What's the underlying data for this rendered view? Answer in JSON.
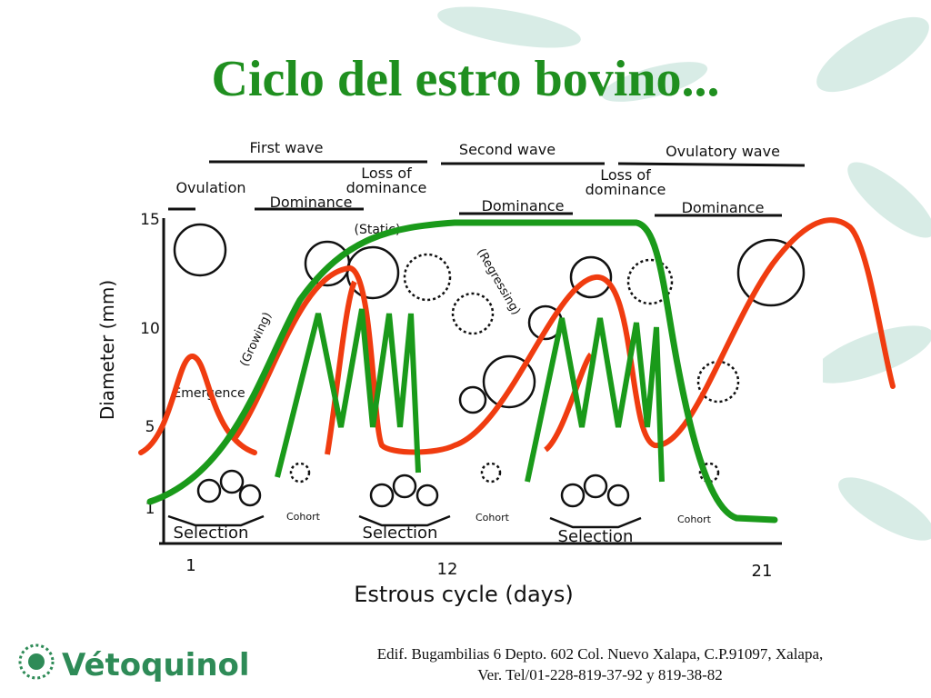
{
  "title": "Ciclo del estro bovino...",
  "diagram": {
    "waves": [
      "First wave",
      "Second wave",
      "Ovulatory wave"
    ],
    "ovulation": "Ovulation",
    "loss_of_dominance": [
      [
        "Loss of",
        "dominance"
      ],
      [
        "Loss of",
        "dominance"
      ]
    ],
    "dominance": [
      "Dominance",
      "Dominance",
      "Dominance"
    ],
    "static": "(Static)",
    "regressing": "(Regressing)",
    "growing": "(Growing)",
    "emergence": "Emergence",
    "selection": [
      "Selection",
      "Selection",
      "Selection"
    ],
    "cohort": [
      "Cohort",
      "Cohort",
      "Cohort"
    ],
    "y_label": "Diameter  (mm)",
    "y_ticks": [
      "15",
      "10",
      "5",
      "1"
    ],
    "x_ticks": [
      "1",
      "12",
      "21"
    ],
    "x_label": "Estrous cycle (days)"
  },
  "footer": {
    "lines": [
      "Edif. Bugambilias 6 Depto. 602 Col. Nuevo Xalapa, C.P.91097, Xalapa,",
      "Ver. Tel/01-228-819-37-92 y 819-38-82"
    ],
    "logo": "Vétoquinol"
  }
}
